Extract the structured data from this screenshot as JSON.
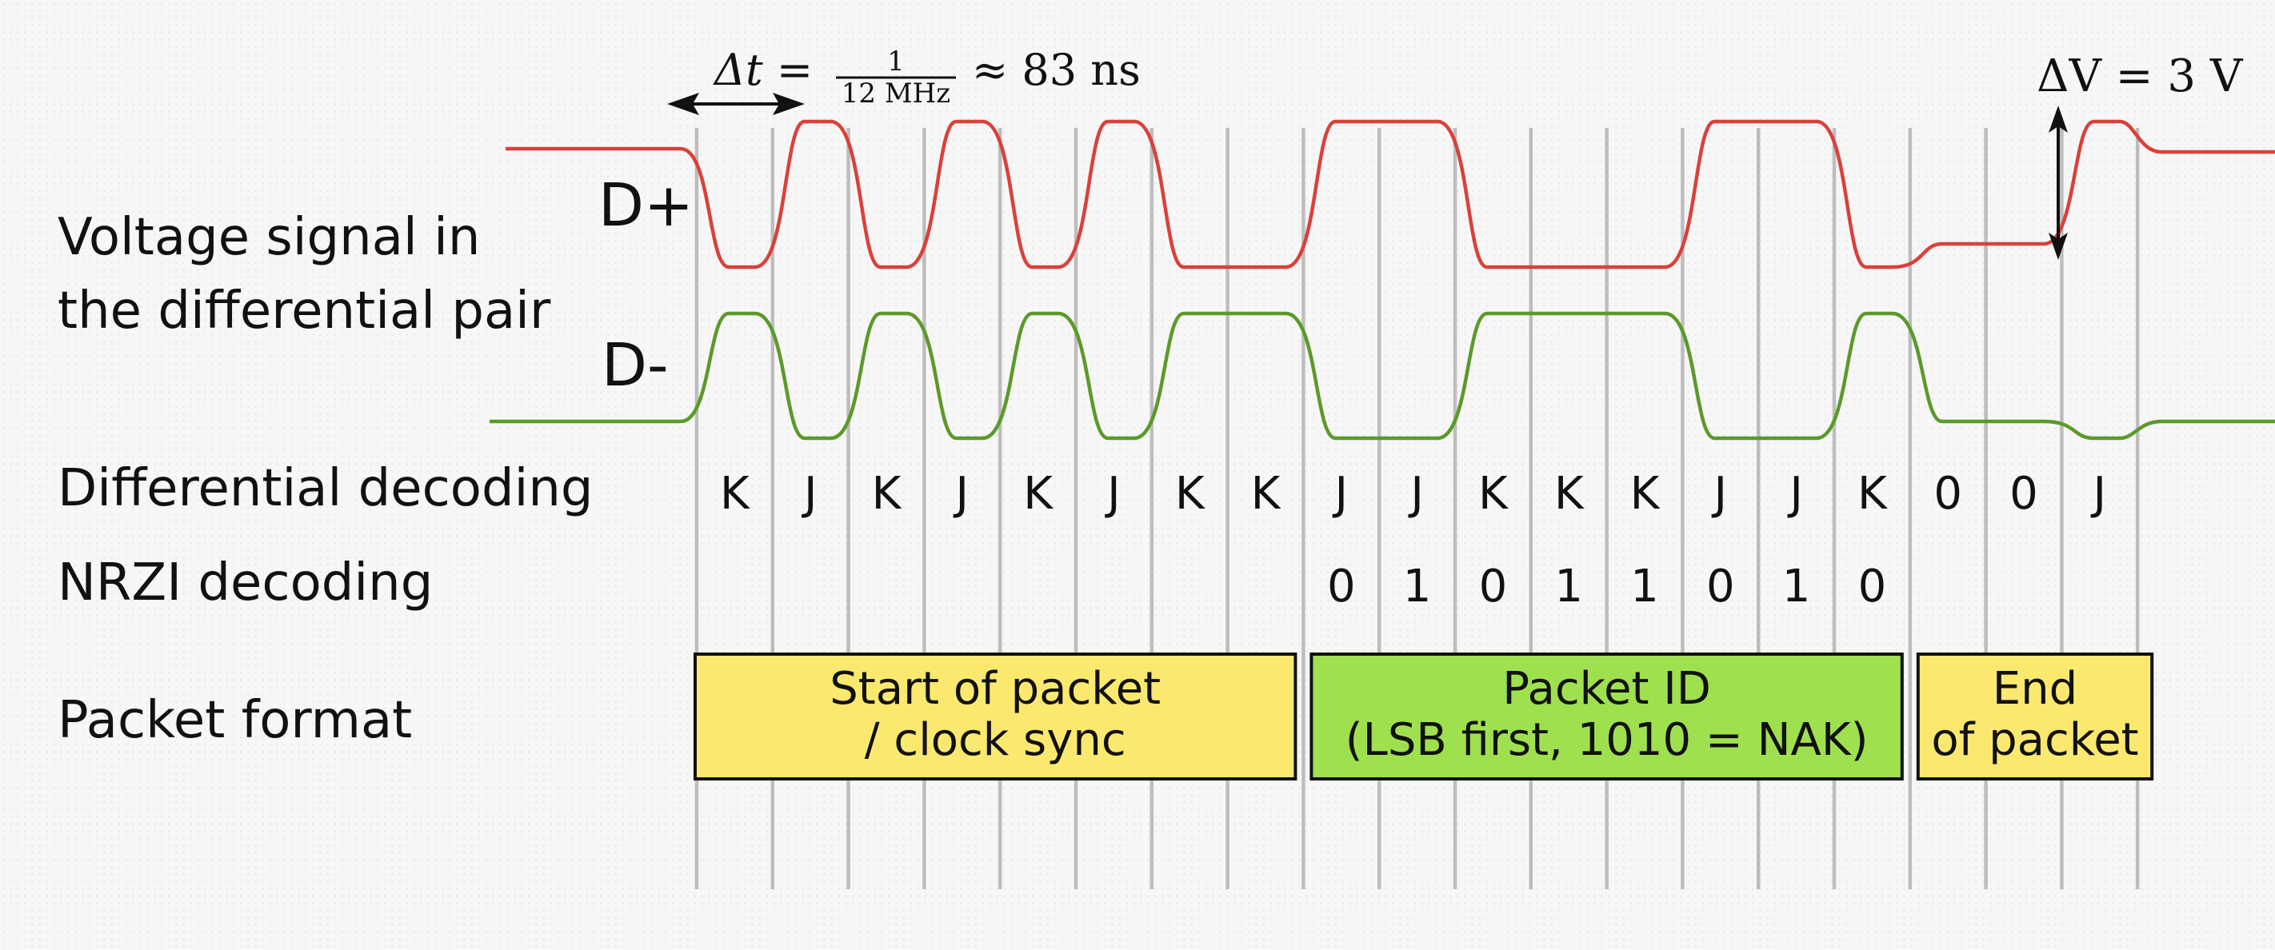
{
  "row_labels": {
    "voltage_line1": "Voltage signal in",
    "voltage_line2": "the differential pair",
    "differential": "Differential decoding",
    "nrzi": "NRZI decoding",
    "packet": "Packet format"
  },
  "signals": {
    "dplus": {
      "name": "D+",
      "color": "#d9413a"
    },
    "dminus": {
      "name": "D-",
      "color": "#5b9a2a"
    }
  },
  "annotations": {
    "delta_t_lhs": "Δt =",
    "delta_t_num": "1",
    "delta_t_den": "12 MHz",
    "delta_t_rhs": "≈ 83 ns",
    "delta_v": "ΔV = 3 V"
  },
  "differential_symbols": [
    "K",
    "J",
    "K",
    "J",
    "K",
    "J",
    "K",
    "K",
    "J",
    "J",
    "K",
    "K",
    "K",
    "J",
    "J",
    "K",
    "0",
    "0",
    "J"
  ],
  "nrzi_bits": [
    "0",
    "1",
    "0",
    "1",
    "1",
    "0",
    "1",
    "0"
  ],
  "packets": [
    {
      "line1": "Start of packet",
      "line2": "/ clock sync",
      "color": "#fbe96f"
    },
    {
      "line1": "Packet ID",
      "line2": "(LSB first, 1010 = NAK)",
      "color": "#9fe04f"
    },
    {
      "line1": "End",
      "line2": "of packet",
      "color": "#fbe96f"
    }
  ]
}
